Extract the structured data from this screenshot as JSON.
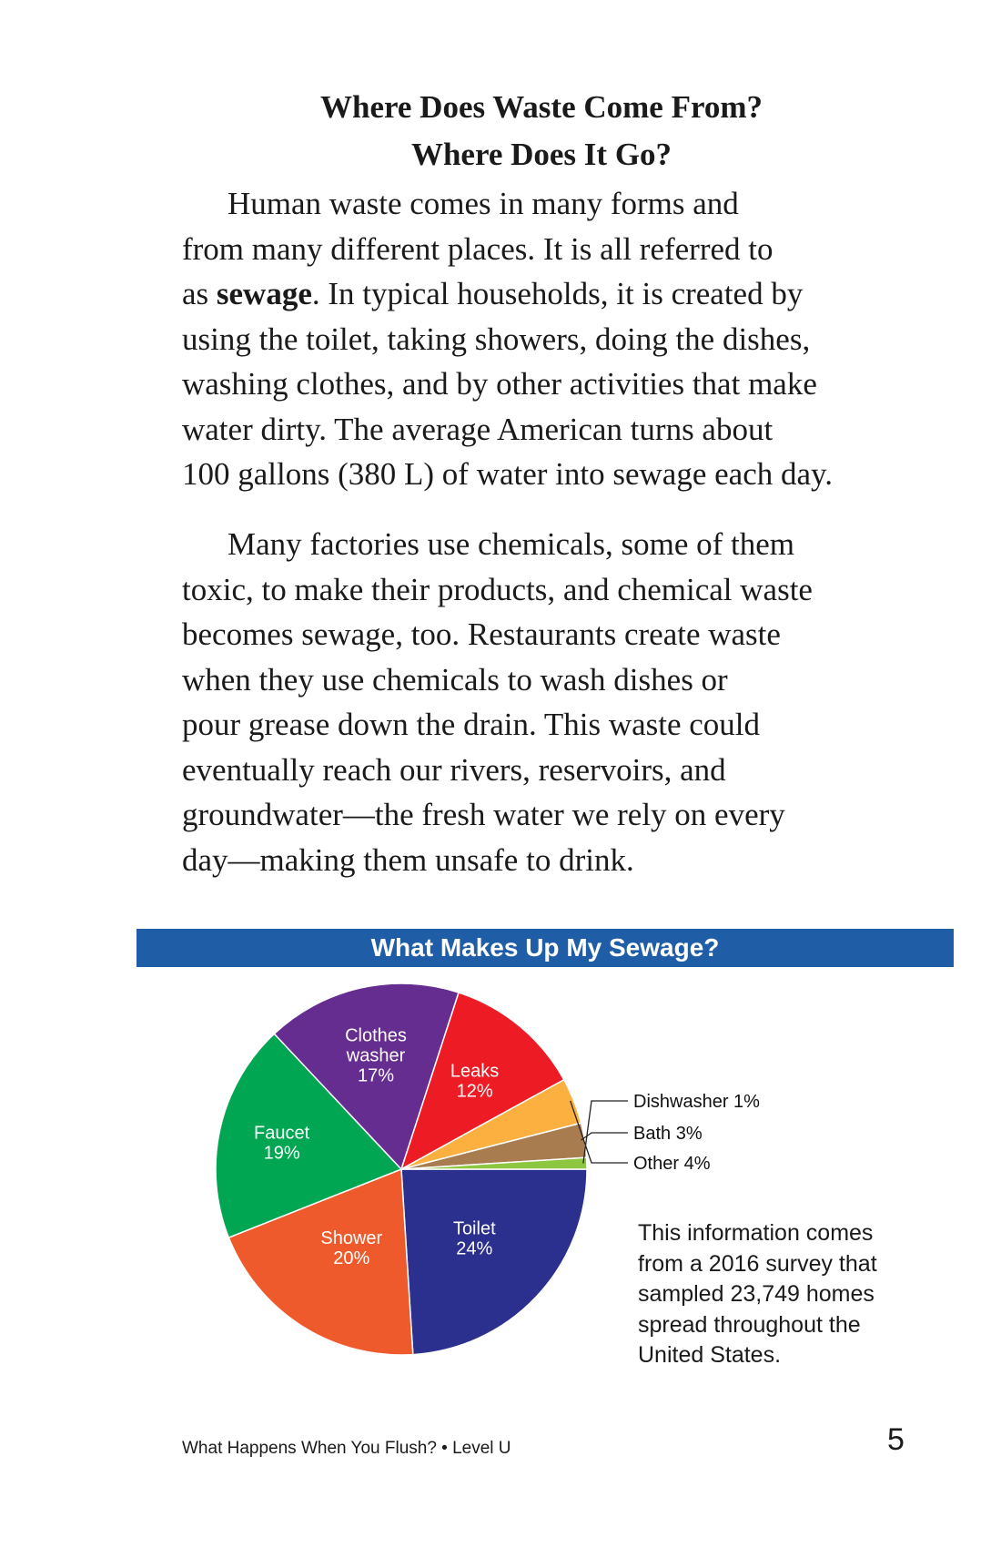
{
  "heading": {
    "line1": "Where Does Waste Come From?",
    "line2": "Where Does It Go?"
  },
  "paragraph1": {
    "lines": [
      "Human waste comes in many forms and",
      "from many different places. It is all referred to",
      "In typical households, it is created by",
      "using the toilet, taking showers, doing the dishes,",
      "washing clothes, and by other activities that make",
      "water dirty. The average American turns about",
      "100 gallons (380 L) of water into sewage each day."
    ],
    "line3_prefix": "as ",
    "bold_term": "sewage",
    "line3_after_term": ". "
  },
  "paragraph2": {
    "lines": [
      "Many factories use chemicals, some of them",
      "toxic, to make their products, and chemical waste",
      "becomes sewage, too. Restaurants create waste",
      "when they use chemicals to wash dishes or",
      "pour grease down the drain. This waste could",
      "eventually reach our rivers, reservoirs, and",
      "groundwater—the fresh water we rely on every",
      "day—making them unsafe to drink."
    ]
  },
  "chart_data": {
    "type": "pie",
    "title": "What Makes Up My Sewage?",
    "slices": [
      {
        "label": "Toilet",
        "lines": [
          "Toilet",
          "24%"
        ],
        "value": 24,
        "color": "#2b2f8e",
        "labeled_inside": true
      },
      {
        "label": "Shower",
        "lines": [
          "Shower",
          "20%"
        ],
        "value": 20,
        "color": "#ee5a2b",
        "labeled_inside": true
      },
      {
        "label": "Faucet",
        "lines": [
          "Faucet",
          "19%"
        ],
        "value": 19,
        "color": "#00a651",
        "labeled_inside": true
      },
      {
        "label": "Clothes washer",
        "lines": [
          "Clothes",
          "washer",
          "17%"
        ],
        "value": 17,
        "color": "#662d91",
        "labeled_inside": true
      },
      {
        "label": "Leaks",
        "lines": [
          "Leaks",
          "12%"
        ],
        "value": 12,
        "color": "#ed1c24",
        "labeled_inside": true
      },
      {
        "label": "Other",
        "lines": [
          "Other 4%"
        ],
        "value": 4,
        "color": "#fbb040",
        "labeled_inside": false
      },
      {
        "label": "Bath",
        "lines": [
          "Bath 3%"
        ],
        "value": 3,
        "color": "#a97c50",
        "labeled_inside": false
      },
      {
        "label": "Dishwasher",
        "lines": [
          "Dishwasher 1%"
        ],
        "value": 1,
        "color": "#8dc63f",
        "labeled_inside": false
      }
    ]
  },
  "chart_note": {
    "lines": [
      "This information comes",
      "from a 2016 survey that",
      "sampled 23,749 homes",
      "spread throughout the",
      "United States."
    ]
  },
  "footer": {
    "book_title": "What Happens When You Flush? • Level U",
    "page_number": "5"
  }
}
